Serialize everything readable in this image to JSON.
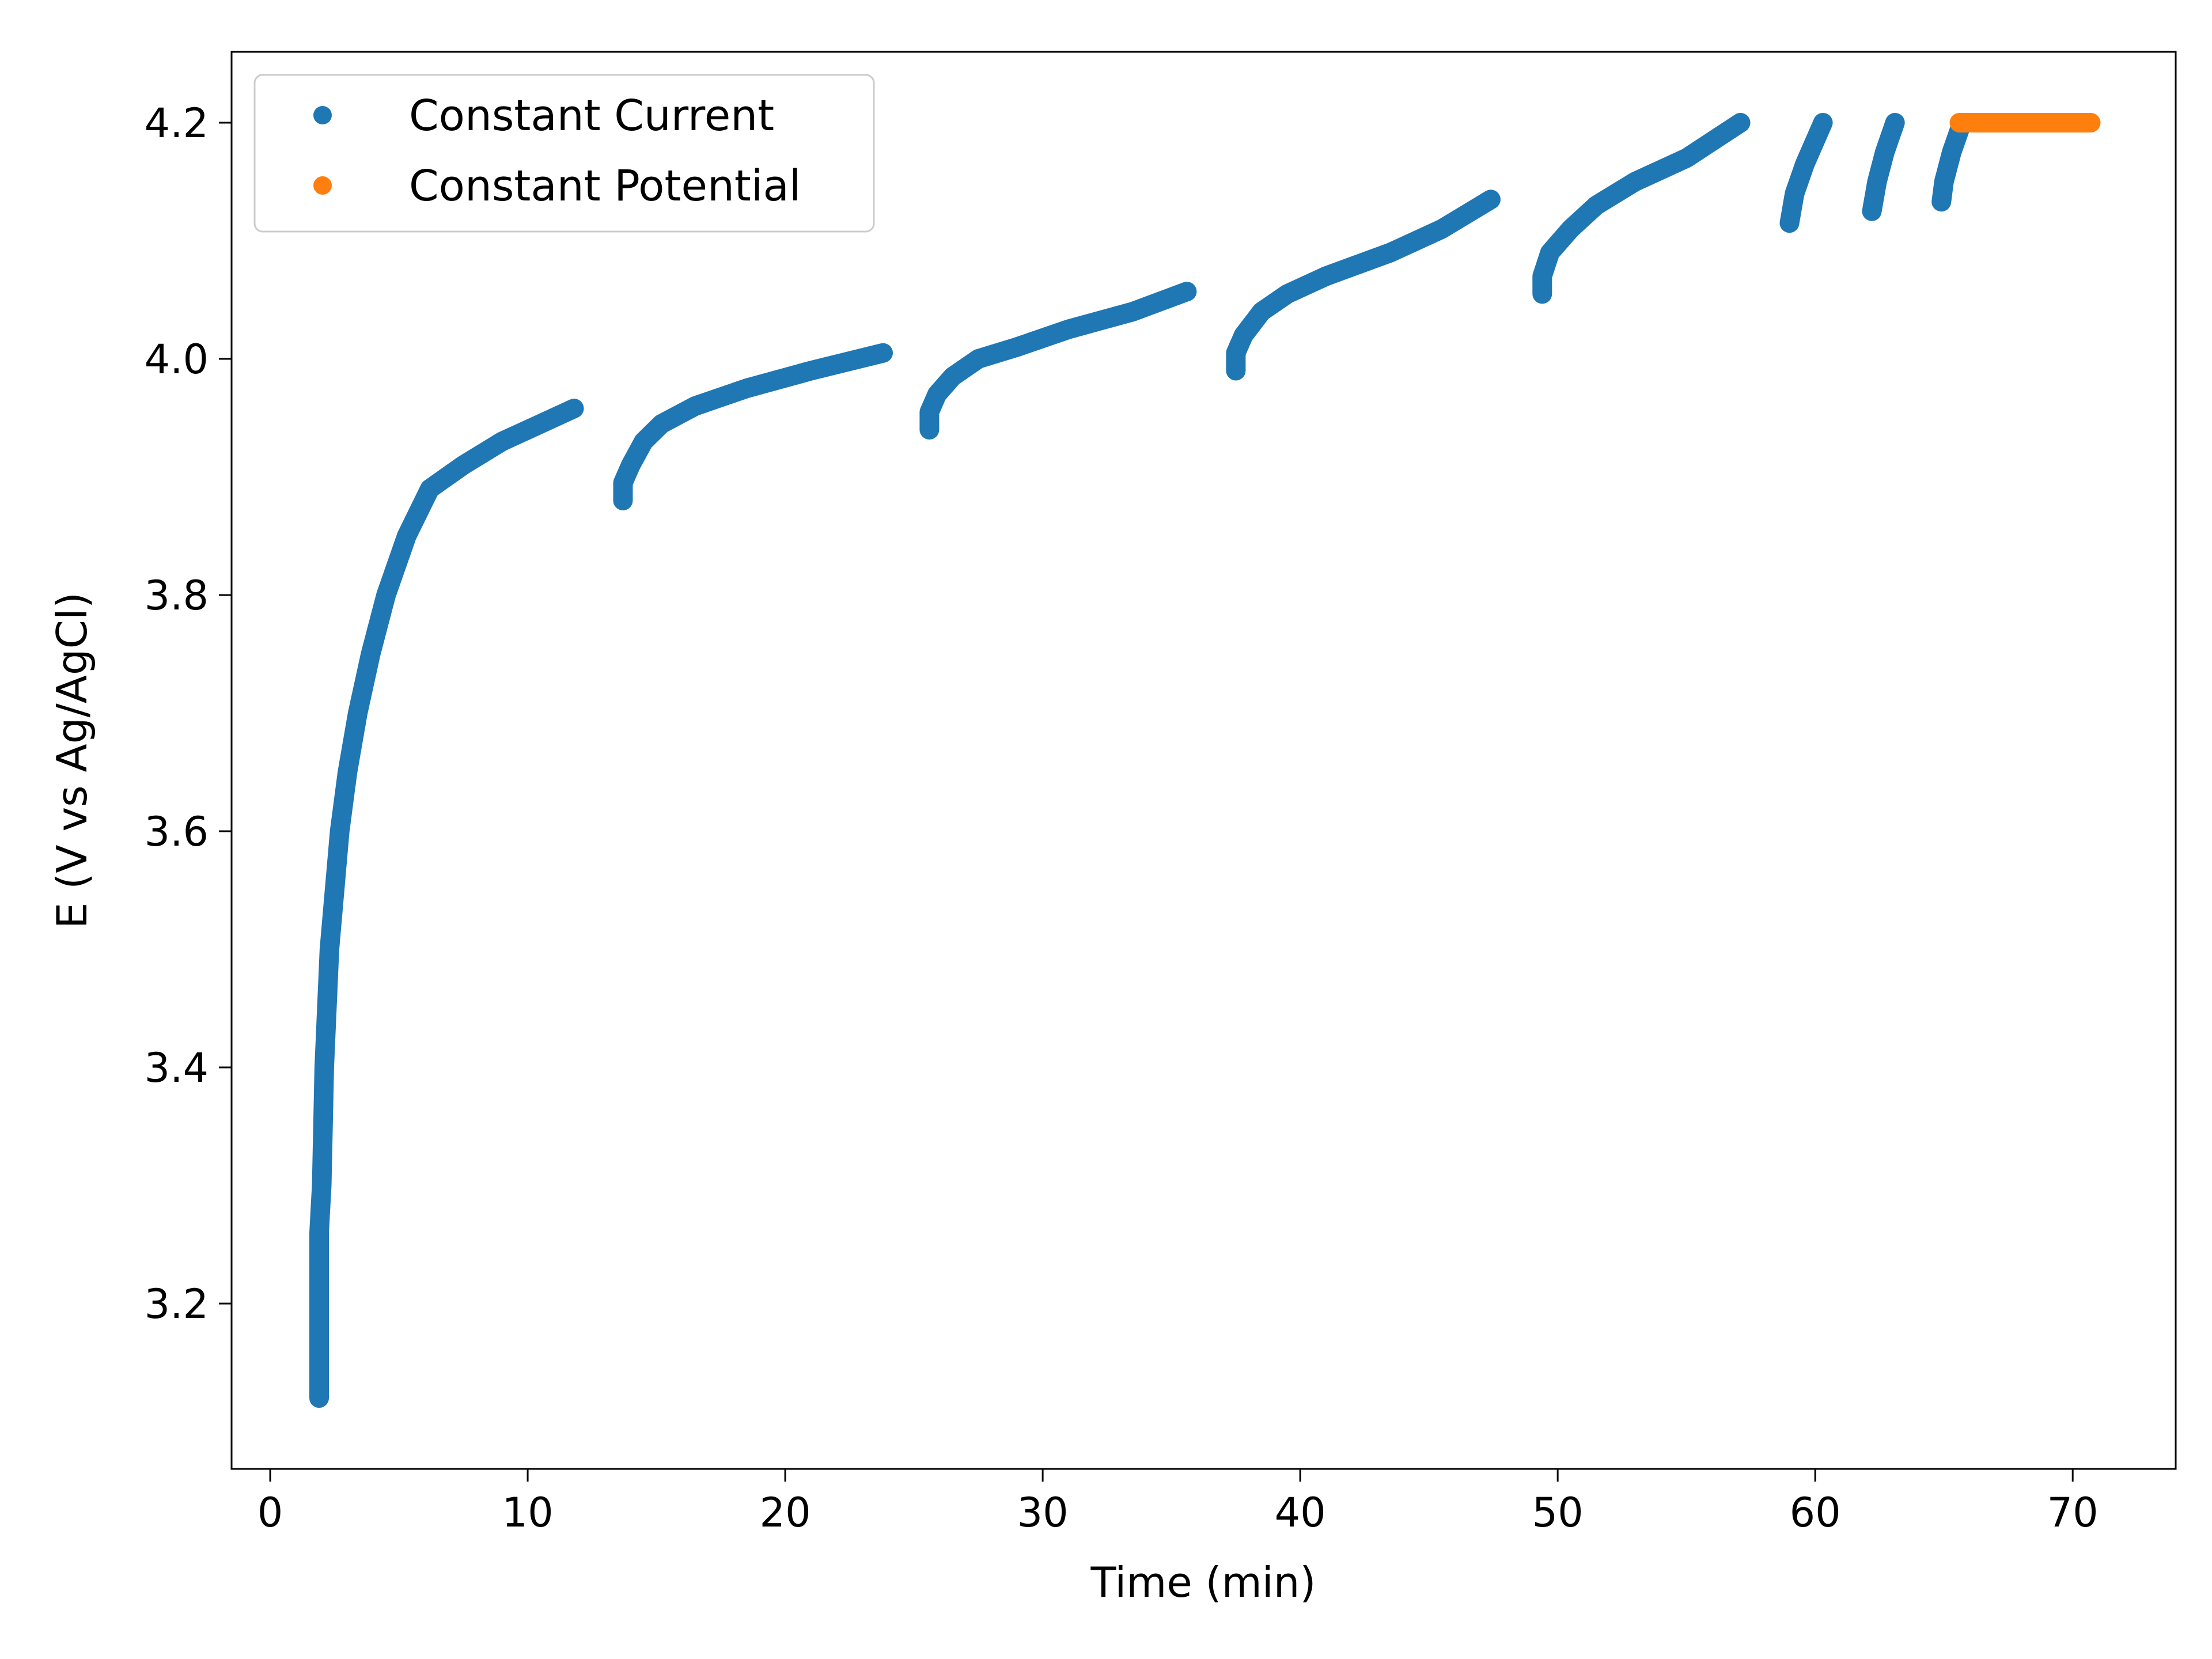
{
  "chart_data": {
    "type": "scatter",
    "title": "",
    "xlabel": "Time (min)",
    "ylabel": "E (V vs Ag/AgCl)",
    "xlim": [
      -1.5,
      74.0
    ],
    "ylim": [
      3.06,
      4.26
    ],
    "xticks": [
      0,
      10,
      20,
      30,
      40,
      50,
      60,
      70
    ],
    "yticks": [
      3.2,
      3.4,
      3.6,
      3.8,
      4.0,
      4.2
    ],
    "ytick_labels": [
      "3.2",
      "3.4",
      "3.6",
      "3.8",
      "4.0",
      "4.2"
    ],
    "grid": false,
    "legend": {
      "position": "top-left",
      "entries": [
        "Constant Current",
        "Constant Potential"
      ]
    },
    "series": [
      {
        "name": "Constant Current",
        "color": "#1f77b4",
        "segments": [
          [
            [
              1.9,
              3.12
            ],
            [
              1.9,
              3.23
            ],
            [
              1.9,
              3.26
            ],
            [
              1.95,
              3.28
            ],
            [
              2.0,
              3.3
            ],
            [
              2.05,
              3.35
            ],
            [
              2.1,
              3.4
            ],
            [
              2.2,
              3.45
            ],
            [
              2.3,
              3.5
            ],
            [
              2.5,
              3.55
            ],
            [
              2.7,
              3.6
            ],
            [
              3.0,
              3.65
            ],
            [
              3.4,
              3.7
            ],
            [
              3.9,
              3.75
            ],
            [
              4.5,
              3.8
            ],
            [
              5.3,
              3.85
            ],
            [
              6.2,
              3.89
            ],
            [
              7.5,
              3.91
            ],
            [
              9.0,
              3.93
            ],
            [
              10.5,
              3.945
            ],
            [
              11.8,
              3.958
            ]
          ],
          [
            [
              13.7,
              3.88
            ],
            [
              13.7,
              3.895
            ],
            [
              14.0,
              3.91
            ],
            [
              14.5,
              3.93
            ],
            [
              15.2,
              3.945
            ],
            [
              16.5,
              3.96
            ],
            [
              18.5,
              3.975
            ],
            [
              21.0,
              3.99
            ],
            [
              23.8,
              4.005
            ]
          ],
          [
            [
              25.6,
              3.94
            ],
            [
              25.6,
              3.955
            ],
            [
              25.9,
              3.97
            ],
            [
              26.5,
              3.985
            ],
            [
              27.5,
              4.0
            ],
            [
              29.0,
              4.01
            ],
            [
              31.0,
              4.025
            ],
            [
              33.5,
              4.04
            ],
            [
              35.6,
              4.057
            ]
          ],
          [
            [
              37.5,
              3.99
            ],
            [
              37.5,
              4.005
            ],
            [
              37.8,
              4.02
            ],
            [
              38.5,
              4.04
            ],
            [
              39.5,
              4.055
            ],
            [
              41.0,
              4.07
            ],
            [
              43.5,
              4.09
            ],
            [
              45.5,
              4.11
            ],
            [
              47.4,
              4.135
            ]
          ],
          [
            [
              49.4,
              4.055
            ],
            [
              49.4,
              4.07
            ],
            [
              49.7,
              4.09
            ],
            [
              50.5,
              4.11
            ],
            [
              51.5,
              4.13
            ],
            [
              53.0,
              4.15
            ],
            [
              55.0,
              4.17
            ],
            [
              57.1,
              4.2
            ]
          ],
          [
            [
              59.0,
              4.115
            ],
            [
              59.2,
              4.14
            ],
            [
              59.6,
              4.165
            ],
            [
              60.3,
              4.2
            ]
          ],
          [
            [
              62.2,
              4.125
            ],
            [
              62.4,
              4.15
            ],
            [
              62.7,
              4.175
            ],
            [
              63.1,
              4.2
            ]
          ],
          [
            [
              64.9,
              4.133
            ],
            [
              65.0,
              4.15
            ],
            [
              65.3,
              4.175
            ],
            [
              65.7,
              4.2
            ]
          ]
        ]
      },
      {
        "name": "Constant Potential",
        "color": "#ff7f0e",
        "segments": [
          [
            [
              65.6,
              4.2
            ],
            [
              70.7,
              4.2
            ]
          ]
        ]
      }
    ]
  }
}
